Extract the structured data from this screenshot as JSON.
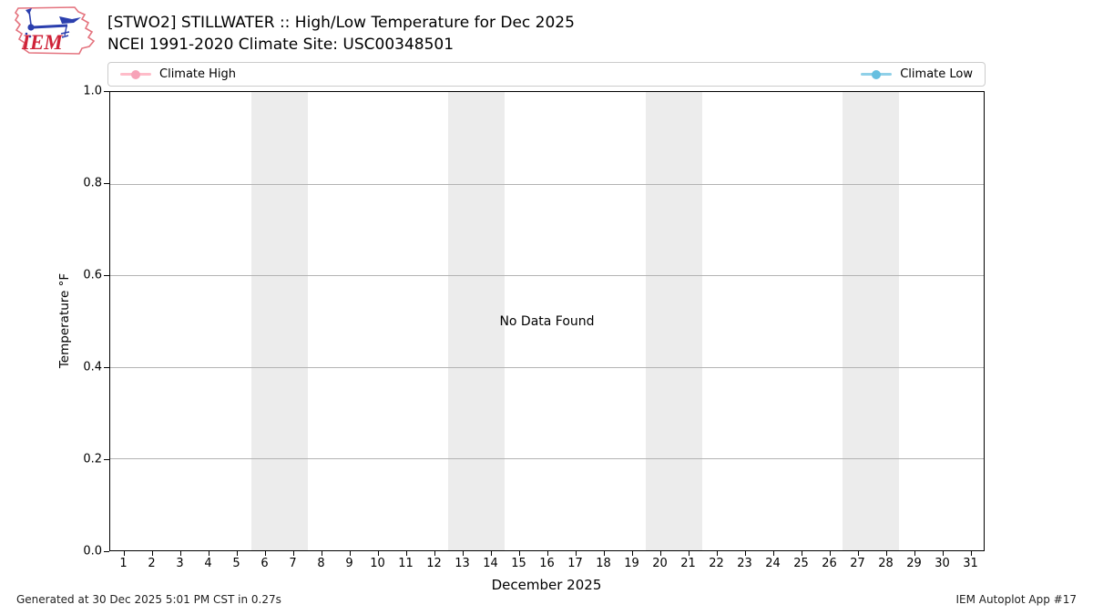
{
  "header": {
    "title_line1": "[STWO2] STILLWATER :: High/Low Temperature for Dec 2025",
    "title_line2": "NCEI 1991-2020 Climate Site: USC00348501",
    "logo_text": "IEM"
  },
  "legend": {
    "high": {
      "label": "Climate High",
      "line_color": "#ffbcc9",
      "marker_color": "#f7a3b8"
    },
    "low": {
      "label": "Climate Low",
      "line_color": "#8fd0e8",
      "marker_color": "#66bfe0"
    }
  },
  "chart_data": {
    "type": "line",
    "title": "[STWO2] STILLWATER :: High/Low Temperature for Dec 2025",
    "subtitle": "NCEI 1991-2020 Climate Site: USC00348501",
    "xlabel": "December 2025",
    "ylabel": "Temperature °F",
    "no_data_message": "No Data Found",
    "xlim": [
      0.5,
      31.5
    ],
    "ylim": [
      0.0,
      1.0
    ],
    "x_ticks": [
      1,
      2,
      3,
      4,
      5,
      6,
      7,
      8,
      9,
      10,
      11,
      12,
      13,
      14,
      15,
      16,
      17,
      18,
      19,
      20,
      21,
      22,
      23,
      24,
      25,
      26,
      27,
      28,
      29,
      30,
      31
    ],
    "y_tick_labels": [
      "0.0",
      "0.2",
      "0.4",
      "0.6",
      "0.8",
      "1.0"
    ],
    "y_tick_values": [
      0.0,
      0.2,
      0.4,
      0.6,
      0.8,
      1.0
    ],
    "gridline_values": [
      0.2,
      0.4,
      0.6,
      0.8
    ],
    "grid": "horizontal",
    "legend_position": "top, expanded, two columns",
    "weekend_bands": [
      [
        5.5,
        7.5
      ],
      [
        12.5,
        14.5
      ],
      [
        19.5,
        21.5
      ],
      [
        26.5,
        28.5
      ]
    ],
    "band_color": "#ececec",
    "series": [
      {
        "name": "Climate High",
        "color": "#ffbcc9",
        "x": [],
        "values": []
      },
      {
        "name": "Climate Low",
        "color": "#8fd0e8",
        "x": [],
        "values": []
      }
    ]
  },
  "footer": {
    "left": "Generated at 30 Dec 2025 5:01 PM CST in 0.27s",
    "right": "IEM Autoplot App #17"
  }
}
